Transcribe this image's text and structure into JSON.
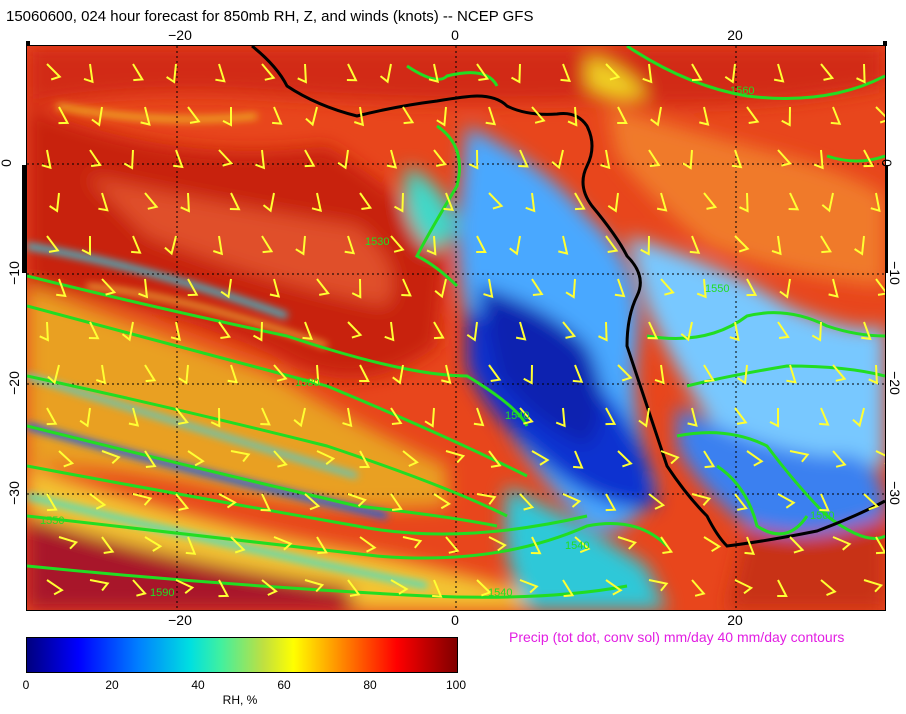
{
  "title": "15060600, 024 hour forecast for 850mb RH, Z, and winds (knots)  -- NCEP GFS",
  "map": {
    "lon_ticks": [
      "−20",
      "0",
      "20"
    ],
    "lat_ticks": [
      "0",
      "−10",
      "−20",
      "−30"
    ],
    "contour_labels": [
      "1560",
      "1530",
      "1540",
      "1580",
      "1550",
      "1540",
      "1590",
      "1550",
      "1540",
      "1500"
    ],
    "colors": {
      "coastline": "#000000",
      "height_contours": "#22dd22",
      "wind_barbs": "#ffff33",
      "graticule": "#000000"
    }
  },
  "precip_note": "Precip (tot dot, conv sol) mm/day 40 mm/day contours",
  "colorbar": {
    "ticks": [
      "0",
      "20",
      "40",
      "60",
      "80",
      "100"
    ],
    "label": "RH, %"
  }
}
